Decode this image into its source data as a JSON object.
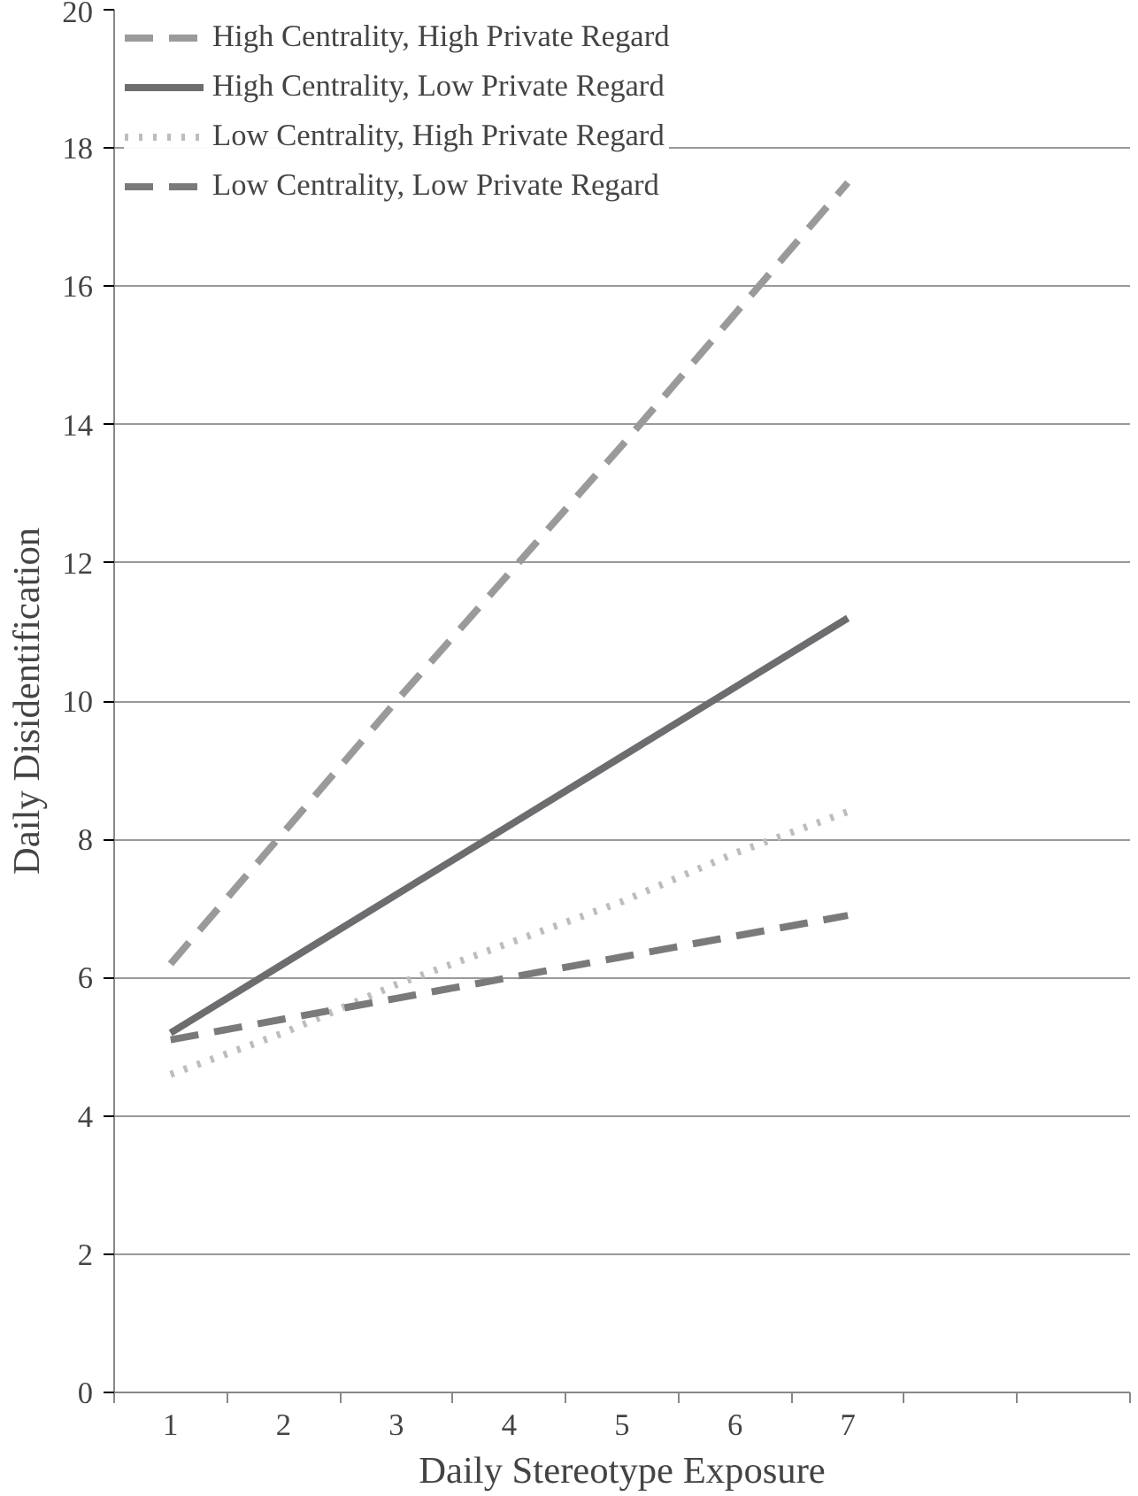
{
  "chart_data": {
    "type": "line",
    "xlabel": "Daily Stereotype Exposure",
    "ylabel": "Daily Disidentification",
    "categories": [
      "1",
      "2",
      "3",
      "4",
      "5",
      "6",
      "7",
      null,
      null
    ],
    "ylim": [
      0,
      20
    ],
    "yticks": [
      0,
      2,
      4,
      6,
      8,
      10,
      12,
      14,
      16,
      18,
      20
    ],
    "grid": "y",
    "legend": "top",
    "marker": "none",
    "series": [
      {
        "name": "High Centrality, High Private Regard",
        "color": "#9a9a9a",
        "line_style": "dashed",
        "values": [
          6.2,
          8.1,
          10.0,
          11.85,
          13.7,
          15.6,
          17.5,
          null,
          null
        ]
      },
      {
        "name": "High Centrality, Low Private Regard",
        "color": "#6d6d70",
        "line_style": "solid",
        "values": [
          5.2,
          6.2,
          7.2,
          8.2,
          9.2,
          10.2,
          11.2,
          null,
          null
        ]
      },
      {
        "name": "Low Centrality, High Private Regard",
        "color": "#bdbdbd",
        "line_style": "dotted",
        "values": [
          4.6,
          5.2,
          5.9,
          6.5,
          7.1,
          7.8,
          8.4,
          null,
          null
        ]
      },
      {
        "name": "Low Centrality, Low Private Regard",
        "color": "#7a7a7a",
        "line_style": "dashed",
        "values": [
          5.1,
          5.4,
          5.7,
          6.0,
          6.3,
          6.6,
          6.9,
          null,
          null
        ]
      }
    ]
  }
}
